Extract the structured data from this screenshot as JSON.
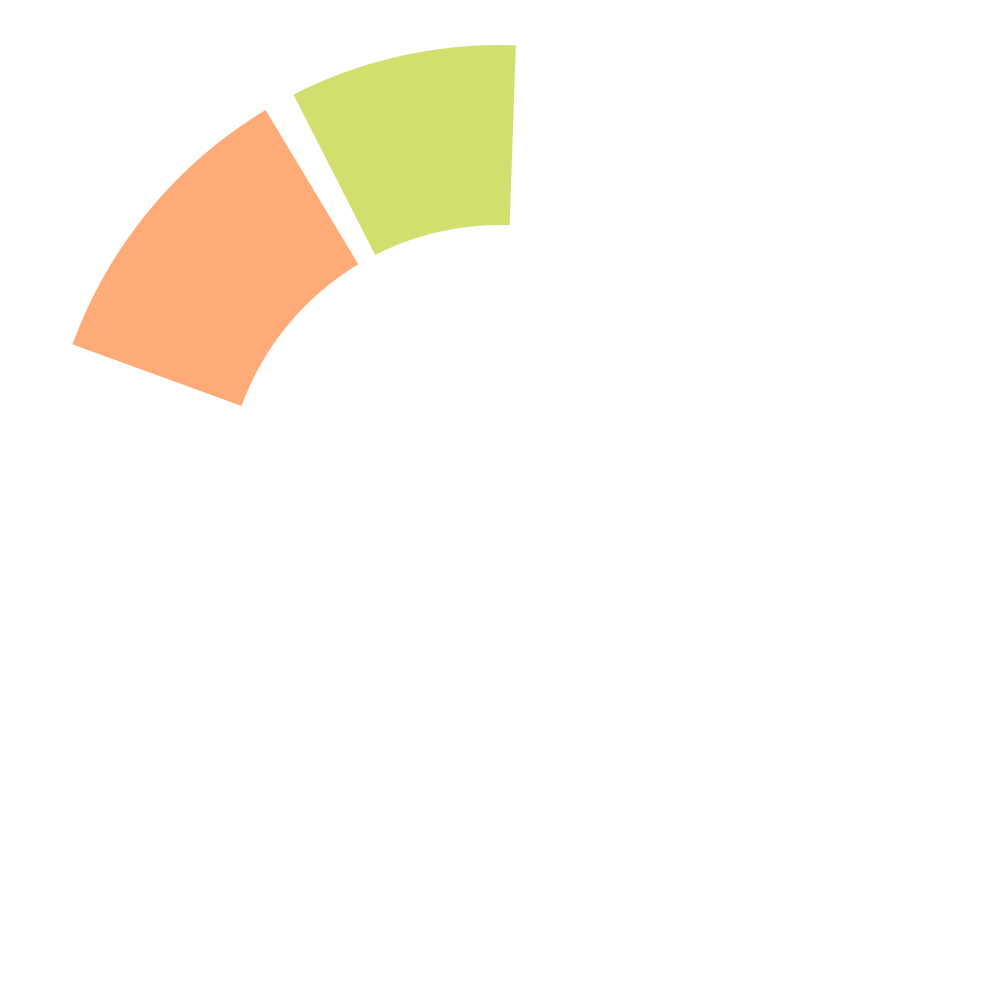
{
  "chart_data": {
    "type": "pie",
    "variant": "donut-segments",
    "slices": [
      {
        "start_angle_deg": -2,
        "end_angle_deg": 27,
        "color": "#d2df6e"
      },
      {
        "start_angle_deg": 31,
        "end_angle_deg": 70,
        "color": "#ffab78"
      }
    ],
    "legend": "none",
    "title": ""
  }
}
